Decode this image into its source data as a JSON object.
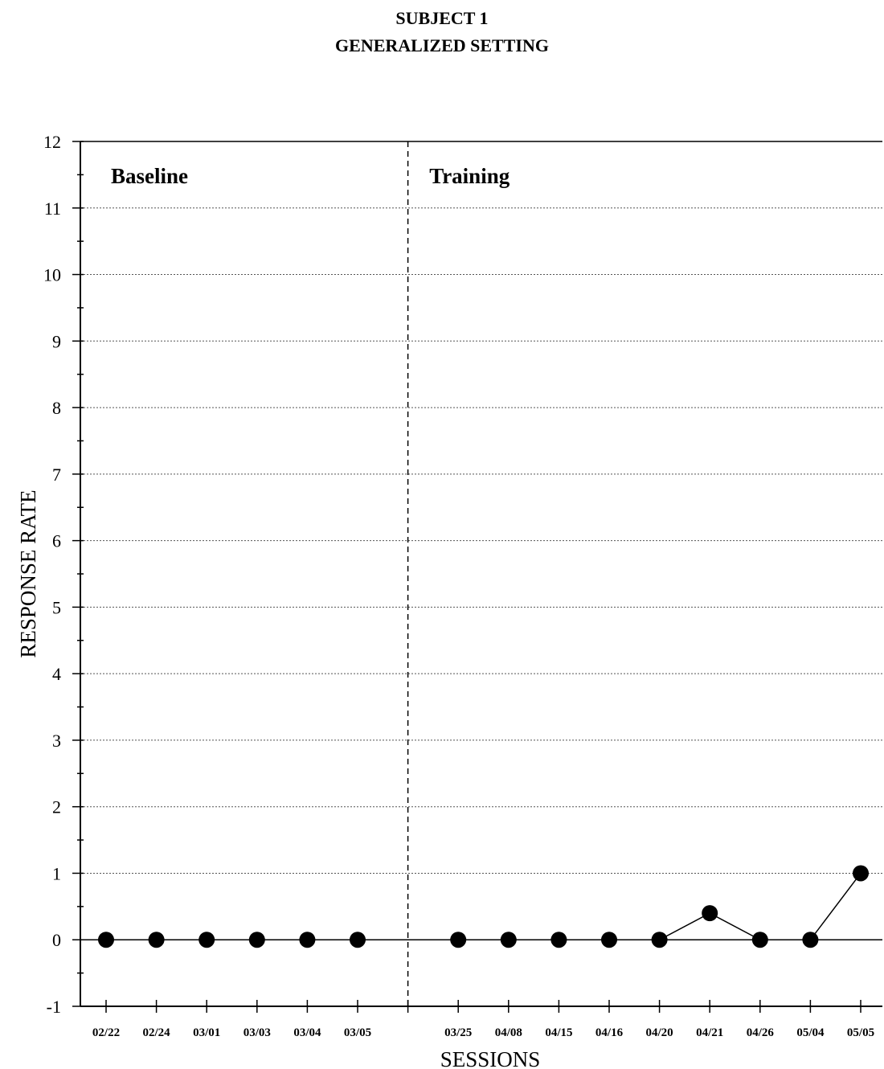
{
  "chart_data": {
    "type": "line",
    "title": "SUBJECT 1",
    "subtitle": "GENERALIZED SETTING",
    "xlabel": "SESSIONS",
    "ylabel": "RESPONSE RATE",
    "ylim": [
      -1,
      12
    ],
    "yticks": [
      -1,
      0,
      1,
      2,
      3,
      4,
      5,
      6,
      7,
      8,
      9,
      10,
      11,
      12
    ],
    "grid": true,
    "phases": [
      {
        "label": "Baseline",
        "categories": [
          "02/22",
          "02/24",
          "03/01",
          "03/03",
          "03/04",
          "03/05"
        ],
        "values": [
          0,
          0,
          0,
          0,
          0,
          0
        ]
      },
      {
        "label": "Training",
        "categories": [
          "03/25",
          "04/08",
          "04/15",
          "04/16",
          "04/20",
          "04/21",
          "04/26",
          "05/04",
          "05/05"
        ],
        "values": [
          0,
          0,
          0,
          0,
          0,
          0.4,
          0,
          0,
          1
        ]
      }
    ],
    "colors": {
      "line": "#000000",
      "marker": "#000000",
      "grid": "#555555"
    }
  }
}
